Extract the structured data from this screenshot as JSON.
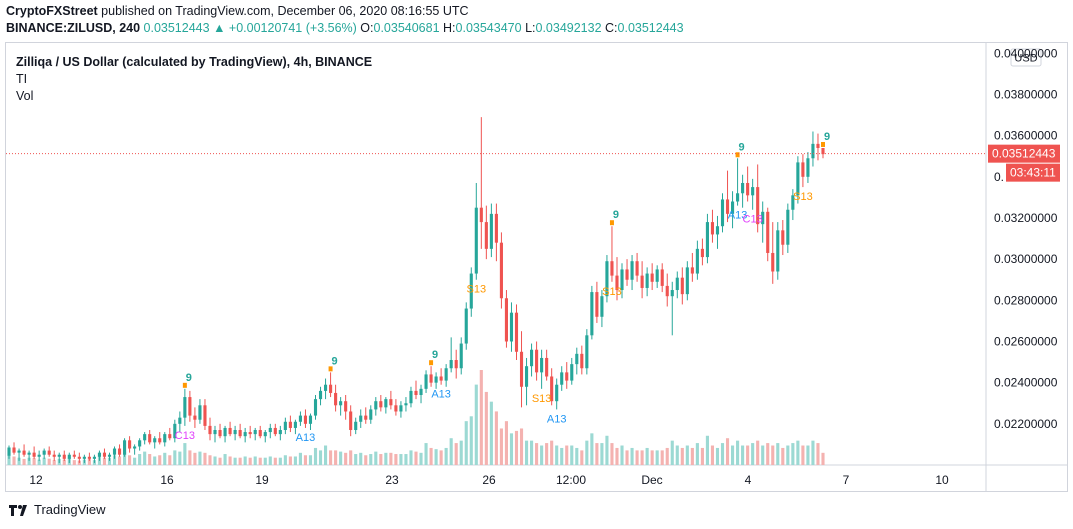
{
  "header": {
    "publisher": "CryptoFXStreet",
    "published_text": "published on TradingView.com, December 06, 2020 08:16:55 UTC"
  },
  "ohlc": {
    "symbol": "BINANCE:ZILUSD, 240",
    "last": "0.03512443",
    "change_arrow": "▲",
    "change": "+0.00120741 (+3.56%)",
    "o_label": "O:",
    "o": "0.03540681",
    "h_label": "H:",
    "h": "0.03543470",
    "l_label": "L:",
    "l": "0.03492132",
    "c_label": "C:",
    "c": "0.03512443"
  },
  "legend": {
    "title": "Zilliqa / US Dollar (calculated by TradingView), 4h, BINANCE",
    "indicator": "TI",
    "volume": "Vol"
  },
  "footer": {
    "brand": "TradingView"
  },
  "colors": {
    "up": "#26a69a",
    "down": "#ef5350",
    "vol_up": "#9cd9d3",
    "vol_down": "#f4b2b0",
    "price_line": "#ef5350",
    "setup_green": "#26a69a",
    "countdown_orange": "#ff9800",
    "countdown_blue": "#2196f3",
    "countdown_pink": "#e040fb"
  },
  "chart_data": {
    "type": "candlestick",
    "currency": "USD",
    "y_ticks": [
      "0.04000000",
      "0.03800000",
      "0.03600000",
      "0.03400000",
      "0.03200000",
      "0.03000000",
      "0.02800000",
      "0.02600000",
      "0.02400000",
      "0.02200000"
    ],
    "ylim": [
      0.02,
      0.0405
    ],
    "x_ticks": [
      "12",
      "16",
      "19",
      "23",
      "26",
      "12:00",
      "Dec",
      "4",
      "7",
      "10"
    ],
    "last_price_label": "0.03512443",
    "countdown_label": "03:43:11",
    "price_axis_partial": "0.",
    "candles": [
      [
        0.02045,
        0.02095,
        0.0203,
        0.02085
      ],
      [
        0.02085,
        0.0211,
        0.0205,
        0.0206
      ],
      [
        0.0206,
        0.0208,
        0.0202,
        0.0207
      ],
      [
        0.0207,
        0.021,
        0.0204,
        0.0205
      ],
      [
        0.0205,
        0.0207,
        0.0202,
        0.0206
      ],
      [
        0.0206,
        0.0209,
        0.0203,
        0.0204
      ],
      [
        0.0204,
        0.0207,
        0.0202,
        0.0205
      ],
      [
        0.0205,
        0.0208,
        0.0203,
        0.0207
      ],
      [
        0.0207,
        0.0209,
        0.0204,
        0.0205
      ],
      [
        0.0205,
        0.0207,
        0.0202,
        0.0204
      ],
      [
        0.0204,
        0.0206,
        0.0201,
        0.0205
      ],
      [
        0.0205,
        0.0207,
        0.0202,
        0.0203
      ],
      [
        0.0203,
        0.0206,
        0.0201,
        0.0205
      ],
      [
        0.0205,
        0.0207,
        0.0203,
        0.0204
      ],
      [
        0.0204,
        0.0206,
        0.0201,
        0.0203
      ],
      [
        0.0203,
        0.0205,
        0.0201,
        0.0204
      ],
      [
        0.0204,
        0.0206,
        0.0202,
        0.0203
      ],
      [
        0.0203,
        0.0205,
        0.0201,
        0.0204
      ],
      [
        0.0204,
        0.0207,
        0.0202,
        0.0206
      ],
      [
        0.0206,
        0.0208,
        0.0203,
        0.0204
      ],
      [
        0.0204,
        0.0206,
        0.0202,
        0.0205
      ],
      [
        0.0205,
        0.0209,
        0.0203,
        0.0208
      ],
      [
        0.0208,
        0.021,
        0.0204,
        0.0205
      ],
      [
        0.0205,
        0.0213,
        0.0204,
        0.0212
      ],
      [
        0.0212,
        0.0214,
        0.0206,
        0.0208
      ],
      [
        0.0208,
        0.021,
        0.0205,
        0.0209
      ],
      [
        0.0209,
        0.0213,
        0.0207,
        0.0212
      ],
      [
        0.0212,
        0.0216,
        0.021,
        0.0215
      ],
      [
        0.0215,
        0.0217,
        0.021,
        0.0211
      ],
      [
        0.0211,
        0.0214,
        0.0208,
        0.0213
      ],
      [
        0.0213,
        0.0216,
        0.021,
        0.0211
      ],
      [
        0.0211,
        0.0216,
        0.0209,
        0.0215
      ],
      [
        0.0215,
        0.0218,
        0.0212,
        0.0213
      ],
      [
        0.0213,
        0.0222,
        0.0211,
        0.022
      ],
      [
        0.022,
        0.0226,
        0.0216,
        0.0223
      ],
      [
        0.0223,
        0.0237,
        0.0219,
        0.0233
      ],
      [
        0.0233,
        0.0236,
        0.0221,
        0.0224
      ],
      [
        0.0224,
        0.0228,
        0.0218,
        0.0222
      ],
      [
        0.0222,
        0.0232,
        0.022,
        0.0229
      ],
      [
        0.0229,
        0.0232,
        0.0217,
        0.0219
      ],
      [
        0.0219,
        0.0223,
        0.0212,
        0.0215
      ],
      [
        0.0215,
        0.0219,
        0.0211,
        0.0217
      ],
      [
        0.0217,
        0.022,
        0.0213,
        0.0214
      ],
      [
        0.0214,
        0.0219,
        0.0211,
        0.0218
      ],
      [
        0.0218,
        0.0221,
        0.0214,
        0.0215
      ],
      [
        0.0215,
        0.0219,
        0.0212,
        0.0217
      ],
      [
        0.0217,
        0.022,
        0.0213,
        0.0214
      ],
      [
        0.0214,
        0.0218,
        0.0211,
        0.0216
      ],
      [
        0.0216,
        0.0219,
        0.0213,
        0.0215
      ],
      [
        0.0215,
        0.0218,
        0.0212,
        0.0217
      ],
      [
        0.0217,
        0.0219,
        0.0213,
        0.0214
      ],
      [
        0.0214,
        0.0217,
        0.0211,
        0.0216
      ],
      [
        0.0216,
        0.022,
        0.0213,
        0.0218
      ],
      [
        0.0218,
        0.022,
        0.0214,
        0.0215
      ],
      [
        0.0215,
        0.0219,
        0.0212,
        0.0217
      ],
      [
        0.0217,
        0.0223,
        0.0215,
        0.0221
      ],
      [
        0.0221,
        0.0224,
        0.0216,
        0.0218
      ],
      [
        0.0218,
        0.0222,
        0.0215,
        0.0221
      ],
      [
        0.0221,
        0.0226,
        0.0219,
        0.0224
      ],
      [
        0.0224,
        0.0227,
        0.0218,
        0.022
      ],
      [
        0.022,
        0.0225,
        0.0217,
        0.0224
      ],
      [
        0.0224,
        0.0234,
        0.0222,
        0.0232
      ],
      [
        0.0232,
        0.0238,
        0.0229,
        0.0236
      ],
      [
        0.0236,
        0.0242,
        0.0232,
        0.0239
      ],
      [
        0.0239,
        0.0245,
        0.0233,
        0.0235
      ],
      [
        0.0235,
        0.0239,
        0.0226,
        0.0229
      ],
      [
        0.0229,
        0.0233,
        0.0224,
        0.0231
      ],
      [
        0.0231,
        0.0234,
        0.0222,
        0.0226
      ],
      [
        0.0226,
        0.0229,
        0.0214,
        0.0217
      ],
      [
        0.0217,
        0.0223,
        0.0215,
        0.0221
      ],
      [
        0.0221,
        0.0227,
        0.0218,
        0.0224
      ],
      [
        0.0224,
        0.0228,
        0.022,
        0.0222
      ],
      [
        0.0222,
        0.0229,
        0.022,
        0.0227
      ],
      [
        0.0227,
        0.0233,
        0.0224,
        0.0231
      ],
      [
        0.0231,
        0.0234,
        0.0226,
        0.0228
      ],
      [
        0.0228,
        0.0233,
        0.0225,
        0.0232
      ],
      [
        0.0232,
        0.0236,
        0.0227,
        0.0229
      ],
      [
        0.0229,
        0.0232,
        0.0224,
        0.0226
      ],
      [
        0.0226,
        0.0231,
        0.0223,
        0.0229
      ],
      [
        0.0229,
        0.0233,
        0.0226,
        0.023
      ],
      [
        0.023,
        0.0238,
        0.0228,
        0.0236
      ],
      [
        0.0236,
        0.0241,
        0.0232,
        0.0234
      ],
      [
        0.0234,
        0.0239,
        0.023,
        0.0237
      ],
      [
        0.0237,
        0.0246,
        0.0235,
        0.0244
      ],
      [
        0.0244,
        0.0248,
        0.0238,
        0.024
      ],
      [
        0.024,
        0.0245,
        0.0237,
        0.0243
      ],
      [
        0.0243,
        0.0247,
        0.0239,
        0.0241
      ],
      [
        0.0241,
        0.0249,
        0.0238,
        0.0247
      ],
      [
        0.0247,
        0.0262,
        0.0245,
        0.0251
      ],
      [
        0.0251,
        0.0256,
        0.0242,
        0.0247
      ],
      [
        0.0247,
        0.0262,
        0.0244,
        0.0259
      ],
      [
        0.0259,
        0.0279,
        0.0256,
        0.0276
      ],
      [
        0.0276,
        0.0296,
        0.0272,
        0.0293
      ],
      [
        0.0293,
        0.0337,
        0.029,
        0.0325
      ],
      [
        0.0325,
        0.0369,
        0.0305,
        0.0318
      ],
      [
        0.0318,
        0.0326,
        0.03,
        0.0305
      ],
      [
        0.0305,
        0.0327,
        0.0301,
        0.0322
      ],
      [
        0.0322,
        0.0327,
        0.0299,
        0.0308
      ],
      [
        0.0308,
        0.0313,
        0.0276,
        0.0281
      ],
      [
        0.0281,
        0.0285,
        0.0257,
        0.026
      ],
      [
        0.026,
        0.0279,
        0.0255,
        0.0274
      ],
      [
        0.0274,
        0.0278,
        0.0251,
        0.0255
      ],
      [
        0.0255,
        0.0265,
        0.0228,
        0.0238
      ],
      [
        0.0238,
        0.0252,
        0.0229,
        0.0248
      ],
      [
        0.0248,
        0.0259,
        0.0243,
        0.0256
      ],
      [
        0.0256,
        0.026,
        0.0241,
        0.0245
      ],
      [
        0.0245,
        0.0256,
        0.0237,
        0.0252
      ],
      [
        0.0252,
        0.0256,
        0.0241,
        0.0243
      ],
      [
        0.0243,
        0.0247,
        0.0229,
        0.0231
      ],
      [
        0.0231,
        0.0242,
        0.0227,
        0.0239
      ],
      [
        0.0239,
        0.0248,
        0.0236,
        0.0245
      ],
      [
        0.0245,
        0.025,
        0.0237,
        0.0241
      ],
      [
        0.0241,
        0.0252,
        0.0239,
        0.0249
      ],
      [
        0.0249,
        0.0257,
        0.0244,
        0.0254
      ],
      [
        0.0254,
        0.0258,
        0.0244,
        0.0247
      ],
      [
        0.0247,
        0.0266,
        0.0244,
        0.0263
      ],
      [
        0.0263,
        0.0287,
        0.0261,
        0.0284
      ],
      [
        0.0284,
        0.0289,
        0.0269,
        0.0272
      ],
      [
        0.0272,
        0.0285,
        0.0267,
        0.0282
      ],
      [
        0.0282,
        0.0302,
        0.0279,
        0.0299
      ],
      [
        0.0299,
        0.0316,
        0.0289,
        0.0292
      ],
      [
        0.0292,
        0.0301,
        0.028,
        0.0285
      ],
      [
        0.0285,
        0.0298,
        0.0281,
        0.0295
      ],
      [
        0.0295,
        0.03,
        0.0287,
        0.029
      ],
      [
        0.029,
        0.0302,
        0.0285,
        0.0299
      ],
      [
        0.0299,
        0.0303,
        0.0289,
        0.0292
      ],
      [
        0.0292,
        0.0299,
        0.0281,
        0.0286
      ],
      [
        0.0286,
        0.0296,
        0.0282,
        0.0293
      ],
      [
        0.0293,
        0.0298,
        0.0285,
        0.0289
      ],
      [
        0.0289,
        0.0297,
        0.0286,
        0.0295
      ],
      [
        0.0295,
        0.0298,
        0.0284,
        0.0287
      ],
      [
        0.0287,
        0.0293,
        0.0277,
        0.0282
      ],
      [
        0.0282,
        0.0289,
        0.0263,
        0.0285
      ],
      [
        0.0285,
        0.0294,
        0.0281,
        0.0291
      ],
      [
        0.0291,
        0.0296,
        0.0278,
        0.0283
      ],
      [
        0.0283,
        0.0299,
        0.028,
        0.0296
      ],
      [
        0.0296,
        0.0303,
        0.0289,
        0.0293
      ],
      [
        0.0293,
        0.0309,
        0.029,
        0.0305
      ],
      [
        0.0305,
        0.031,
        0.0297,
        0.0301
      ],
      [
        0.0301,
        0.0322,
        0.0298,
        0.0318
      ],
      [
        0.0318,
        0.0324,
        0.0308,
        0.0312
      ],
      [
        0.0312,
        0.0321,
        0.0305,
        0.0316
      ],
      [
        0.0316,
        0.0332,
        0.0313,
        0.0329
      ],
      [
        0.0329,
        0.0343,
        0.0318,
        0.0322
      ],
      [
        0.0322,
        0.0333,
        0.0315,
        0.0328
      ],
      [
        0.0328,
        0.0349,
        0.0326,
        0.0332
      ],
      [
        0.0332,
        0.0341,
        0.0325,
        0.0337
      ],
      [
        0.0337,
        0.0345,
        0.0328,
        0.0331
      ],
      [
        0.0331,
        0.0339,
        0.0324,
        0.0335
      ],
      [
        0.0335,
        0.0346,
        0.0313,
        0.0317
      ],
      [
        0.0317,
        0.0328,
        0.0308,
        0.0323
      ],
      [
        0.0323,
        0.0325,
        0.0299,
        0.0303
      ],
      [
        0.0303,
        0.0318,
        0.0288,
        0.0294
      ],
      [
        0.0294,
        0.0318,
        0.029,
        0.0314
      ],
      [
        0.0314,
        0.0319,
        0.0302,
        0.0307
      ],
      [
        0.0307,
        0.0327,
        0.0303,
        0.0324
      ],
      [
        0.0324,
        0.0334,
        0.0319,
        0.0331
      ],
      [
        0.0331,
        0.035,
        0.0327,
        0.0347
      ],
      [
        0.0347,
        0.0351,
        0.0335,
        0.034
      ],
      [
        0.034,
        0.0352,
        0.0337,
        0.0349
      ],
      [
        0.0349,
        0.0362,
        0.0345,
        0.0356
      ],
      [
        0.0356,
        0.0361,
        0.0348,
        0.0354
      ],
      [
        0.0354,
        0.0354,
        0.0349,
        0.0351
      ]
    ],
    "volume": [
      0.4,
      0.35,
      0.3,
      0.25,
      0.3,
      0.28,
      0.22,
      0.3,
      0.26,
      0.2,
      0.25,
      0.22,
      0.3,
      0.2,
      0.18,
      0.22,
      0.25,
      0.2,
      0.35,
      0.3,
      0.3,
      0.4,
      0.35,
      0.55,
      0.4,
      0.3,
      0.45,
      0.55,
      0.45,
      0.35,
      0.4,
      0.5,
      0.4,
      0.6,
      0.55,
      0.9,
      0.6,
      0.5,
      0.55,
      0.5,
      0.4,
      0.35,
      0.3,
      0.45,
      0.35,
      0.3,
      0.3,
      0.35,
      0.3,
      0.35,
      0.3,
      0.3,
      0.35,
      0.3,
      0.3,
      0.4,
      0.35,
      0.35,
      0.5,
      0.4,
      0.4,
      0.7,
      0.6,
      0.8,
      0.6,
      0.6,
      0.55,
      0.5,
      0.6,
      0.45,
      0.5,
      0.4,
      0.45,
      0.55,
      0.45,
      0.5,
      0.5,
      0.45,
      0.45,
      0.45,
      0.6,
      0.55,
      0.5,
      0.9,
      0.7,
      0.65,
      0.6,
      0.7,
      1.1,
      0.9,
      1.0,
      1.8,
      2.0,
      3.3,
      3.9,
      3.0,
      2.6,
      2.2,
      1.5,
      1.8,
      1.3,
      1.4,
      1.5,
      1.0,
      1.0,
      0.9,
      0.8,
      0.9,
      1.0,
      0.8,
      0.7,
      0.8,
      0.8,
      0.7,
      0.6,
      1.0,
      1.3,
      0.9,
      0.9,
      1.2,
      0.9,
      0.7,
      0.8,
      0.6,
      0.7,
      0.6,
      0.6,
      0.7,
      0.6,
      0.6,
      0.6,
      0.7,
      1.0,
      0.8,
      0.7,
      0.8,
      0.7,
      0.9,
      0.7,
      1.2,
      0.8,
      0.7,
      0.9,
      1.1,
      0.8,
      1.0,
      0.8,
      0.8,
      0.9,
      1.0,
      0.8,
      0.9,
      0.8,
      0.9,
      0.7,
      0.8,
      0.9,
      1.0,
      0.8,
      0.8,
      1.0,
      0.9,
      0.5
    ],
    "markers": [
      {
        "i": 35,
        "text": "9",
        "color": "#26a69a",
        "pos": "above",
        "up": true
      },
      {
        "i": 35,
        "text": "C13",
        "color": "#e040fb",
        "pos": "below"
      },
      {
        "i": 64,
        "text": "9",
        "color": "#26a69a",
        "pos": "above",
        "up": true
      },
      {
        "i": 59,
        "text": "A13",
        "color": "#2196f3",
        "pos": "below"
      },
      {
        "i": 84,
        "text": "9",
        "color": "#26a69a",
        "pos": "above",
        "up": true
      },
      {
        "i": 86,
        "text": "A13",
        "color": "#2196f3",
        "pos": "below"
      },
      {
        "i": 93,
        "text": "S13",
        "color": "#ff9800",
        "pos": "below"
      },
      {
        "i": 106,
        "text": "S13",
        "color": "#ff9800",
        "pos": "below"
      },
      {
        "i": 109,
        "text": "A13",
        "color": "#2196f3",
        "pos": "below"
      },
      {
        "i": 120,
        "text": "9",
        "color": "#26a69a",
        "pos": "above",
        "up": true
      },
      {
        "i": 120,
        "text": "S13",
        "color": "#ff9800",
        "pos": "below"
      },
      {
        "i": 145,
        "text": "9",
        "color": "#26a69a",
        "pos": "above",
        "up": true
      },
      {
        "i": 145,
        "text": "A13",
        "color": "#2196f3",
        "pos": "below"
      },
      {
        "i": 148,
        "text": "C13",
        "color": "#e040fb",
        "pos": "below"
      },
      {
        "i": 158,
        "text": "S13",
        "color": "#ff9800",
        "pos": "below"
      },
      {
        "i": 162,
        "text": "9",
        "color": "#26a69a",
        "pos": "above",
        "up": true
      }
    ]
  }
}
